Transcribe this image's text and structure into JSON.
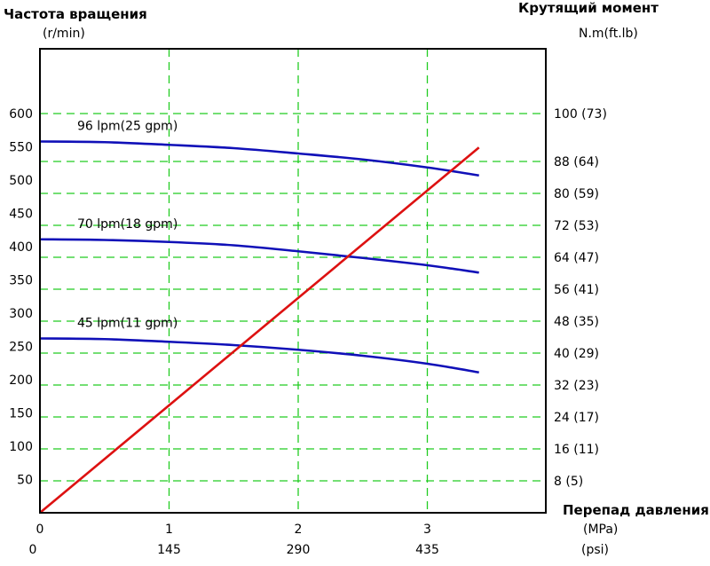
{
  "chart_data": {
    "type": "line",
    "left_axis": {
      "title": "Частота вращения",
      "unit": "(r/min)",
      "range": [
        0,
        600
      ],
      "ticks": [
        50,
        100,
        150,
        200,
        250,
        300,
        350,
        400,
        450,
        500,
        550,
        600
      ]
    },
    "right_axis": {
      "title": "Крутящий момент",
      "unit": "N.m(ft.lb)",
      "range": [
        0,
        100
      ],
      "ticks": [
        {
          "value": 8,
          "label": "8 (5)"
        },
        {
          "value": 16,
          "label": "16 (11)"
        },
        {
          "value": 24,
          "label": "24 (17)"
        },
        {
          "value": 32,
          "label": "32 (23)"
        },
        {
          "value": 40,
          "label": "40 (29)"
        },
        {
          "value": 48,
          "label": "48 (35)"
        },
        {
          "value": 56,
          "label": "56 (41)"
        },
        {
          "value": 64,
          "label": "64 (47)"
        },
        {
          "value": 72,
          "label": "72 (53)"
        },
        {
          "value": 80,
          "label": "80 (59)"
        },
        {
          "value": 88,
          "label": "88 (64)"
        },
        {
          "value": 100,
          "label": "100 (73)"
        }
      ]
    },
    "x_axis": {
      "title": "Перепад давления",
      "unit_mpa": "(MPa)",
      "unit_psi": "(psi)",
      "range": [
        0,
        3.9
      ],
      "ticks_mpa": [
        {
          "value": 0,
          "label": "0"
        },
        {
          "value": 1,
          "label": "1"
        },
        {
          "value": 2,
          "label": "2"
        },
        {
          "value": 3,
          "label": "3"
        }
      ],
      "ticks_psi": [
        {
          "value": 0,
          "label": "0"
        },
        {
          "value": 1,
          "label": "145"
        },
        {
          "value": 2,
          "label": "290"
        },
        {
          "value": 3,
          "label": "435"
        }
      ]
    },
    "grid": true,
    "series": [
      {
        "name": "96 lpm(25 gpm)",
        "axis": "left",
        "color": "#1010b8",
        "x": [
          0,
          0.5,
          1.0,
          1.5,
          2.0,
          2.5,
          3.0,
          3.4
        ],
        "y": [
          558,
          557,
          553,
          548,
          540,
          531,
          519,
          507
        ]
      },
      {
        "name": "70 lpm(18 gpm)",
        "axis": "left",
        "color": "#1010b8",
        "x": [
          0,
          0.5,
          1.0,
          1.5,
          2.0,
          2.5,
          3.0,
          3.4
        ],
        "y": [
          411,
          410,
          407,
          402,
          393,
          383,
          372,
          361
        ]
      },
      {
        "name": "45 lpm(11 gpm)",
        "axis": "left",
        "color": "#1010b8",
        "x": [
          0,
          0.5,
          1.0,
          1.5,
          2.0,
          2.5,
          3.0,
          3.4
        ],
        "y": [
          262,
          261,
          257,
          252,
          245,
          236,
          224,
          211
        ]
      },
      {
        "axis": "right",
        "color": "#dd1111",
        "x": [
          0,
          3.4
        ],
        "y": [
          0,
          91.5
        ]
      }
    ]
  }
}
